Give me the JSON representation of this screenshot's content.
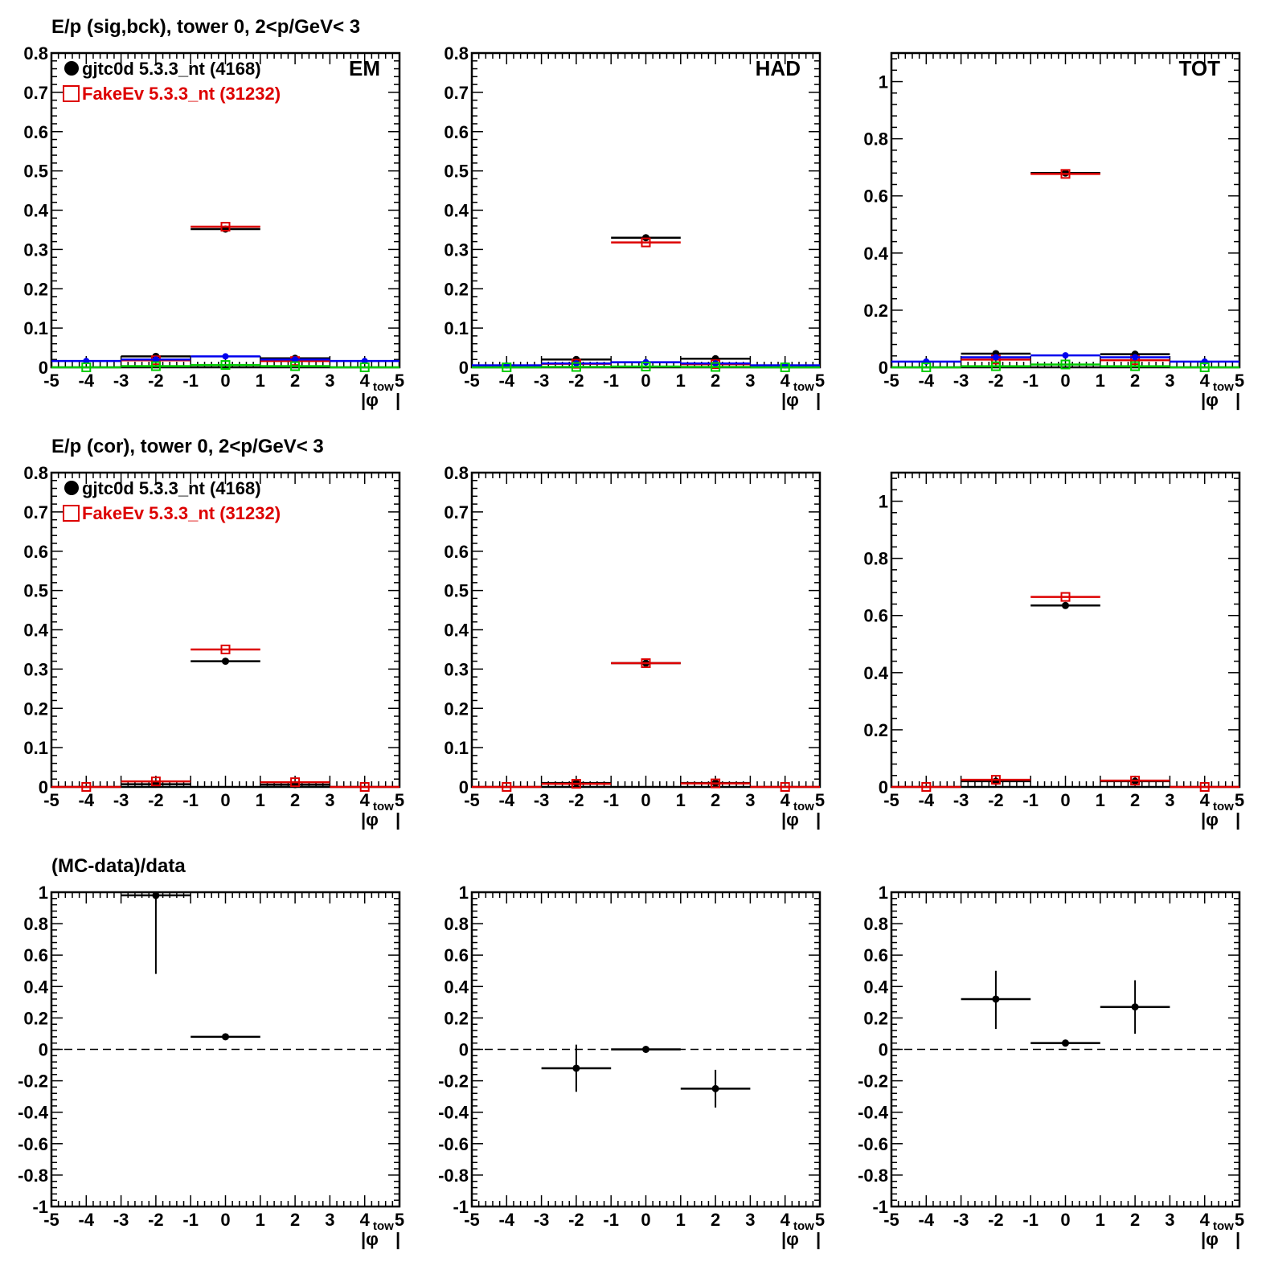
{
  "figure": {
    "row_titles": [
      "E/p (sig,bck), tower 0,  2<p/GeV< 3",
      "E/p (cor), tower 0,  2<p/GeV< 3",
      "(MC-data)/data"
    ],
    "legend": [
      {
        "label": "gjtc0d 5.3.3_nt (4168)",
        "color": "#000000",
        "marker": "filled-circle"
      },
      {
        "label": "FakeEv 5.3.3_nt (31232)",
        "color": "#dd0000",
        "marker": "open-square"
      }
    ],
    "x_axis_label_main": "|φ",
    "x_axis_label_sub": "tow",
    "x_axis_label_end": "|",
    "colors": {
      "data": "#000000",
      "mc": "#dd0000",
      "blue": "#0000ee",
      "green": "#00cc00",
      "dashed": "#000000"
    }
  },
  "chart_data": [
    {
      "type": "scatter",
      "row": 0,
      "col": 0,
      "label": "EM",
      "xlim": [
        -5,
        5
      ],
      "ylim": [
        0,
        0.8
      ],
      "xticks": [
        -5,
        -4,
        -3,
        -2,
        -1,
        0,
        1,
        2,
        3,
        4,
        5
      ],
      "yticks": [
        0,
        0.1,
        0.2,
        0.3,
        0.4,
        0.5,
        0.6,
        0.7,
        0.8
      ],
      "series": [
        {
          "name": "gjtc0d 5.3.3_nt (4168)",
          "style": "data",
          "points": [
            {
              "x": -2,
              "y": 0.028
            },
            {
              "x": 0,
              "y": 0.352
            },
            {
              "x": 2,
              "y": 0.023
            }
          ]
        },
        {
          "name": "FakeEv 5.3.3_nt (31232)",
          "style": "mc",
          "points": [
            {
              "x": -2,
              "y": 0.018
            },
            {
              "x": 0,
              "y": 0.358
            },
            {
              "x": 2,
              "y": 0.016
            }
          ]
        },
        {
          "style": "blue",
          "points": [
            {
              "x": -4,
              "y": 0.016
            },
            {
              "x": -2,
              "y": 0.02
            },
            {
              "x": 0,
              "y": 0.028
            },
            {
              "x": 2,
              "y": 0.02
            },
            {
              "x": 4,
              "y": 0.016
            }
          ]
        },
        {
          "style": "green",
          "points": [
            {
              "x": -4,
              "y": 0.0
            },
            {
              "x": -2,
              "y": 0.003
            },
            {
              "x": 0,
              "y": 0.006
            },
            {
              "x": 2,
              "y": 0.003
            },
            {
              "x": 4,
              "y": 0.0
            }
          ]
        }
      ]
    },
    {
      "type": "scatter",
      "row": 0,
      "col": 1,
      "label": "HAD",
      "xlim": [
        -5,
        5
      ],
      "ylim": [
        0,
        0.8
      ],
      "xticks": [
        -5,
        -4,
        -3,
        -2,
        -1,
        0,
        1,
        2,
        3,
        4,
        5
      ],
      "yticks": [
        0,
        0.1,
        0.2,
        0.3,
        0.4,
        0.5,
        0.6,
        0.7,
        0.8
      ],
      "series": [
        {
          "name": "gjtc0d 5.3.3_nt (4168)",
          "style": "data",
          "points": [
            {
              "x": -2,
              "y": 0.02
            },
            {
              "x": 0,
              "y": 0.33
            },
            {
              "x": 2,
              "y": 0.022
            }
          ]
        },
        {
          "name": "FakeEv 5.3.3_nt (31232)",
          "style": "mc",
          "points": [
            {
              "x": -2,
              "y": 0.009
            },
            {
              "x": 0,
              "y": 0.318
            },
            {
              "x": 2,
              "y": 0.008
            }
          ]
        },
        {
          "style": "blue",
          "points": [
            {
              "x": -4,
              "y": 0.005
            },
            {
              "x": -2,
              "y": 0.01
            },
            {
              "x": 0,
              "y": 0.013
            },
            {
              "x": 2,
              "y": 0.01
            },
            {
              "x": 4,
              "y": 0.005
            }
          ]
        },
        {
          "style": "green",
          "points": [
            {
              "x": -4,
              "y": 0.0
            },
            {
              "x": -2,
              "y": 0.001
            },
            {
              "x": 0,
              "y": 0.002
            },
            {
              "x": 2,
              "y": 0.001
            },
            {
              "x": 4,
              "y": 0.0
            }
          ]
        }
      ]
    },
    {
      "type": "scatter",
      "row": 0,
      "col": 2,
      "label": "TOT",
      "xlim": [
        -5,
        5
      ],
      "ylim": [
        0,
        1.1
      ],
      "xticks": [
        -5,
        -4,
        -3,
        -2,
        -1,
        0,
        1,
        2,
        3,
        4,
        5
      ],
      "yticks": [
        0,
        0.2,
        0.4,
        0.6,
        0.8,
        1
      ],
      "series": [
        {
          "name": "gjtc0d 5.3.3_nt (4168)",
          "style": "data",
          "points": [
            {
              "x": -2,
              "y": 0.048
            },
            {
              "x": 0,
              "y": 0.68
            },
            {
              "x": 2,
              "y": 0.046
            }
          ]
        },
        {
          "name": "FakeEv 5.3.3_nt (31232)",
          "style": "mc",
          "points": [
            {
              "x": -2,
              "y": 0.027
            },
            {
              "x": 0,
              "y": 0.677
            },
            {
              "x": 2,
              "y": 0.025
            }
          ]
        },
        {
          "style": "blue",
          "points": [
            {
              "x": -4,
              "y": 0.02
            },
            {
              "x": -2,
              "y": 0.035
            },
            {
              "x": 0,
              "y": 0.042
            },
            {
              "x": 2,
              "y": 0.035
            },
            {
              "x": 4,
              "y": 0.02
            }
          ]
        },
        {
          "style": "green",
          "points": [
            {
              "x": -4,
              "y": 0.0
            },
            {
              "x": -2,
              "y": 0.004
            },
            {
              "x": 0,
              "y": 0.01
            },
            {
              "x": 2,
              "y": 0.004
            },
            {
              "x": 4,
              "y": 0.0
            }
          ]
        }
      ]
    },
    {
      "type": "scatter",
      "row": 1,
      "col": 0,
      "xlim": [
        -5,
        5
      ],
      "ylim": [
        0,
        0.8
      ],
      "xticks": [
        -5,
        -4,
        -3,
        -2,
        -1,
        0,
        1,
        2,
        3,
        4,
        5
      ],
      "yticks": [
        0,
        0.1,
        0.2,
        0.3,
        0.4,
        0.5,
        0.6,
        0.7,
        0.8
      ],
      "series": [
        {
          "name": "gjtc0d 5.3.3_nt (4168)",
          "style": "data",
          "points": [
            {
              "x": -2,
              "y": 0.007
            },
            {
              "x": 0,
              "y": 0.32
            },
            {
              "x": 2,
              "y": 0.006
            }
          ]
        },
        {
          "name": "FakeEv 5.3.3_nt (31232)",
          "style": "mc",
          "points": [
            {
              "x": -4,
              "y": 0.0
            },
            {
              "x": -2,
              "y": 0.014
            },
            {
              "x": 0,
              "y": 0.35
            },
            {
              "x": 2,
              "y": 0.012
            },
            {
              "x": 4,
              "y": 0.0
            }
          ]
        }
      ]
    },
    {
      "type": "scatter",
      "row": 1,
      "col": 1,
      "xlim": [
        -5,
        5
      ],
      "ylim": [
        0,
        0.8
      ],
      "xticks": [
        -5,
        -4,
        -3,
        -2,
        -1,
        0,
        1,
        2,
        3,
        4,
        5
      ],
      "yticks": [
        0,
        0.1,
        0.2,
        0.3,
        0.4,
        0.5,
        0.6,
        0.7,
        0.8
      ],
      "series": [
        {
          "name": "gjtc0d 5.3.3_nt (4168)",
          "style": "data",
          "points": [
            {
              "x": -2,
              "y": 0.01
            },
            {
              "x": 0,
              "y": 0.315
            },
            {
              "x": 2,
              "y": 0.01
            }
          ]
        },
        {
          "name": "FakeEv 5.3.3_nt (31232)",
          "style": "mc",
          "points": [
            {
              "x": -4,
              "y": 0.0
            },
            {
              "x": -2,
              "y": 0.008
            },
            {
              "x": 0,
              "y": 0.315
            },
            {
              "x": 2,
              "y": 0.009
            },
            {
              "x": 4,
              "y": 0.0
            }
          ]
        }
      ]
    },
    {
      "type": "scatter",
      "row": 1,
      "col": 2,
      "xlim": [
        -5,
        5
      ],
      "ylim": [
        0,
        1.1
      ],
      "xticks": [
        -5,
        -4,
        -3,
        -2,
        -1,
        0,
        1,
        2,
        3,
        4,
        5
      ],
      "yticks": [
        0,
        0.2,
        0.4,
        0.6,
        0.8,
        1
      ],
      "series": [
        {
          "name": "gjtc0d 5.3.3_nt (4168)",
          "style": "data",
          "points": [
            {
              "x": -2,
              "y": 0.02
            },
            {
              "x": 0,
              "y": 0.635
            },
            {
              "x": 2,
              "y": 0.02
            }
          ]
        },
        {
          "name": "FakeEv 5.3.3_nt (31232)",
          "style": "mc",
          "points": [
            {
              "x": -4,
              "y": 0.0
            },
            {
              "x": -2,
              "y": 0.025
            },
            {
              "x": 0,
              "y": 0.665
            },
            {
              "x": 2,
              "y": 0.022
            },
            {
              "x": 4,
              "y": 0.0
            }
          ]
        }
      ]
    },
    {
      "type": "scatter",
      "row": 2,
      "col": 0,
      "xlim": [
        -5,
        5
      ],
      "ylim": [
        -1,
        1
      ],
      "xticks": [
        -5,
        -4,
        -3,
        -2,
        -1,
        0,
        1,
        2,
        3,
        4,
        5
      ],
      "yticks": [
        -1,
        -0.8,
        -0.6,
        -0.4,
        -0.2,
        0,
        0.2,
        0.4,
        0.6,
        0.8,
        1
      ],
      "reference_line": 0,
      "series": [
        {
          "style": "ratio",
          "points": [
            {
              "x": -2,
              "y": 0.98,
              "err_low": 0.5,
              "err_high": 0.02
            },
            {
              "x": 0,
              "y": 0.08,
              "err_low": 0.005,
              "err_high": 0.005
            }
          ]
        }
      ]
    },
    {
      "type": "scatter",
      "row": 2,
      "col": 1,
      "xlim": [
        -5,
        5
      ],
      "ylim": [
        -1,
        1
      ],
      "xticks": [
        -5,
        -4,
        -3,
        -2,
        -1,
        0,
        1,
        2,
        3,
        4,
        5
      ],
      "yticks": [
        -1,
        -0.8,
        -0.6,
        -0.4,
        -0.2,
        0,
        0.2,
        0.4,
        0.6,
        0.8,
        1
      ],
      "reference_line": 0,
      "series": [
        {
          "style": "ratio",
          "points": [
            {
              "x": -2,
              "y": -0.12,
              "err_low": 0.15,
              "err_high": 0.15
            },
            {
              "x": 0,
              "y": 0.0,
              "err_low": 0.005,
              "err_high": 0.005
            },
            {
              "x": 2,
              "y": -0.25,
              "err_low": 0.12,
              "err_high": 0.12
            }
          ]
        }
      ]
    },
    {
      "type": "scatter",
      "row": 2,
      "col": 2,
      "xlim": [
        -5,
        5
      ],
      "ylim": [
        -1,
        1
      ],
      "xticks": [
        -5,
        -4,
        -3,
        -2,
        -1,
        0,
        1,
        2,
        3,
        4,
        5
      ],
      "yticks": [
        -1,
        -0.8,
        -0.6,
        -0.4,
        -0.2,
        0,
        0.2,
        0.4,
        0.6,
        0.8,
        1
      ],
      "reference_line": 0,
      "series": [
        {
          "style": "ratio",
          "points": [
            {
              "x": -2,
              "y": 0.32,
              "err_low": 0.19,
              "err_high": 0.18
            },
            {
              "x": 0,
              "y": 0.04,
              "err_low": 0.005,
              "err_high": 0.005
            },
            {
              "x": 2,
              "y": 0.27,
              "err_low": 0.17,
              "err_high": 0.17
            }
          ]
        }
      ]
    }
  ]
}
